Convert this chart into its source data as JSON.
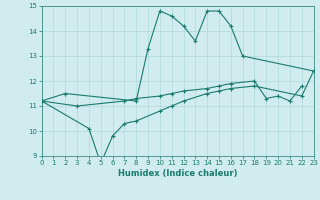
{
  "line1_x": [
    0,
    2,
    8,
    9,
    10,
    11,
    12,
    13,
    14,
    15,
    16,
    17,
    23
  ],
  "line1_y": [
    11.2,
    11.5,
    11.2,
    13.3,
    14.8,
    14.6,
    14.2,
    13.6,
    14.8,
    14.8,
    14.2,
    13.0,
    12.4
  ],
  "line2_x": [
    0,
    3,
    7,
    8,
    10,
    11,
    12,
    14,
    15,
    16,
    18,
    19,
    20,
    21,
    22
  ],
  "line2_y": [
    11.2,
    11.0,
    11.2,
    11.3,
    11.4,
    11.5,
    11.6,
    11.7,
    11.8,
    11.9,
    12.0,
    11.3,
    11.4,
    11.2,
    11.8
  ],
  "line3_x": [
    0,
    4,
    5,
    6,
    7,
    8,
    10,
    11,
    12,
    14,
    15,
    16,
    18,
    22,
    23
  ],
  "line3_y": [
    11.2,
    10.1,
    8.7,
    9.8,
    10.3,
    10.4,
    10.8,
    11.0,
    11.2,
    11.5,
    11.6,
    11.7,
    11.8,
    11.4,
    12.4
  ],
  "color": "#1a7a6e",
  "bg_color": "#d0ecee",
  "grid_color": "#b0d8db",
  "xlabel": "Humidex (Indice chaleur)",
  "xlim": [
    0,
    23
  ],
  "ylim": [
    9,
    15
  ],
  "yticks": [
    9,
    10,
    11,
    12,
    13,
    14,
    15
  ],
  "xticks": [
    0,
    1,
    2,
    3,
    4,
    5,
    6,
    7,
    8,
    9,
    10,
    11,
    12,
    13,
    14,
    15,
    16,
    17,
    18,
    19,
    20,
    21,
    22,
    23
  ]
}
